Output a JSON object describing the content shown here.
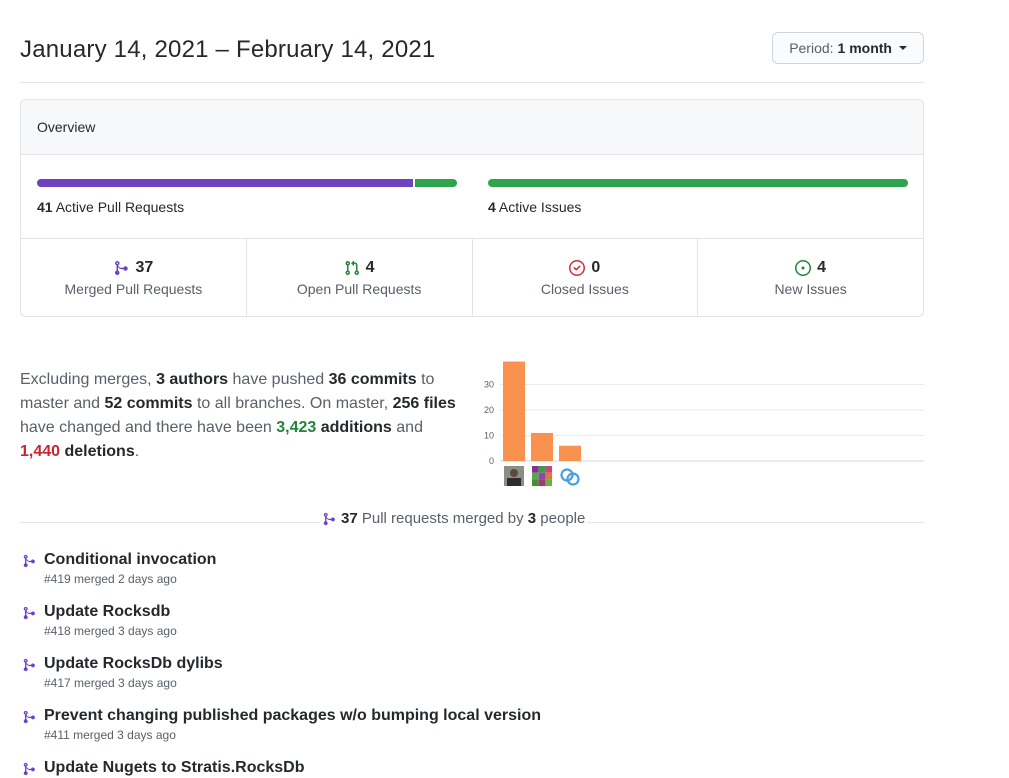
{
  "header": {
    "date_range": "January 14, 2021 – February 14, 2021",
    "period_label": "Period:",
    "period_value": "1 month"
  },
  "overview": {
    "title": "Overview",
    "pull_requests": {
      "count": "41",
      "label": "Active Pull Requests",
      "merged_fraction": 0.9,
      "open_fraction": 0.1
    },
    "issues": {
      "count": "4",
      "label": "Active Issues",
      "new_fraction": 1.0
    },
    "stats": [
      {
        "icon": "merge-icon",
        "count": "37",
        "label": "Merged Pull Requests",
        "color": "#6f42c1"
      },
      {
        "icon": "pull-request-icon",
        "count": "4",
        "label": "Open Pull Requests",
        "color": "#22863a"
      },
      {
        "icon": "issue-closed-icon",
        "count": "0",
        "label": "Closed Issues",
        "color": "#cb2431"
      },
      {
        "icon": "issue-opened-icon",
        "count": "4",
        "label": "New Issues",
        "color": "#22863a"
      }
    ]
  },
  "summary": {
    "t1": "Excluding merges, ",
    "authors": "3 authors",
    "t2": " have pushed ",
    "commits_master": "36 commits",
    "t3": " to master and ",
    "commits_all": "52 commits",
    "t4": " to all branches. On master, ",
    "files": "256 files",
    "t5": " have changed and there have been ",
    "additions_num": "3,423",
    "additions_word": " additions",
    "t6": " and ",
    "deletions_num": "1,440",
    "deletions_word": " deletions",
    "t7": "."
  },
  "chart_data": {
    "type": "bar",
    "categories": [
      "author-1",
      "author-2",
      "author-3"
    ],
    "values": [
      39,
      11,
      6
    ],
    "yticks": [
      "30",
      "20",
      "10",
      "0"
    ],
    "ylim": [
      0,
      40
    ],
    "bar_color": "#f9914f",
    "grid": true
  },
  "merged": {
    "count": "37",
    "t1": " Pull requests merged by ",
    "people": "3",
    "t2": " people"
  },
  "pull_requests": [
    {
      "title": "Conditional invocation",
      "meta": "#419 merged 2 days ago"
    },
    {
      "title": "Update Rocksdb",
      "meta": "#418 merged 3 days ago"
    },
    {
      "title": "Update RocksDb dylibs",
      "meta": "#417 merged 3 days ago"
    },
    {
      "title": "Prevent changing published packages w/o bumping local version",
      "meta": "#411 merged 3 days ago"
    },
    {
      "title": "Update Nugets to Stratis.RocksDb",
      "meta": ""
    }
  ],
  "colors": {
    "purple": "#6f42c1",
    "green": "#2ea44f",
    "red": "#cb2431",
    "orange": "#f9914f"
  }
}
